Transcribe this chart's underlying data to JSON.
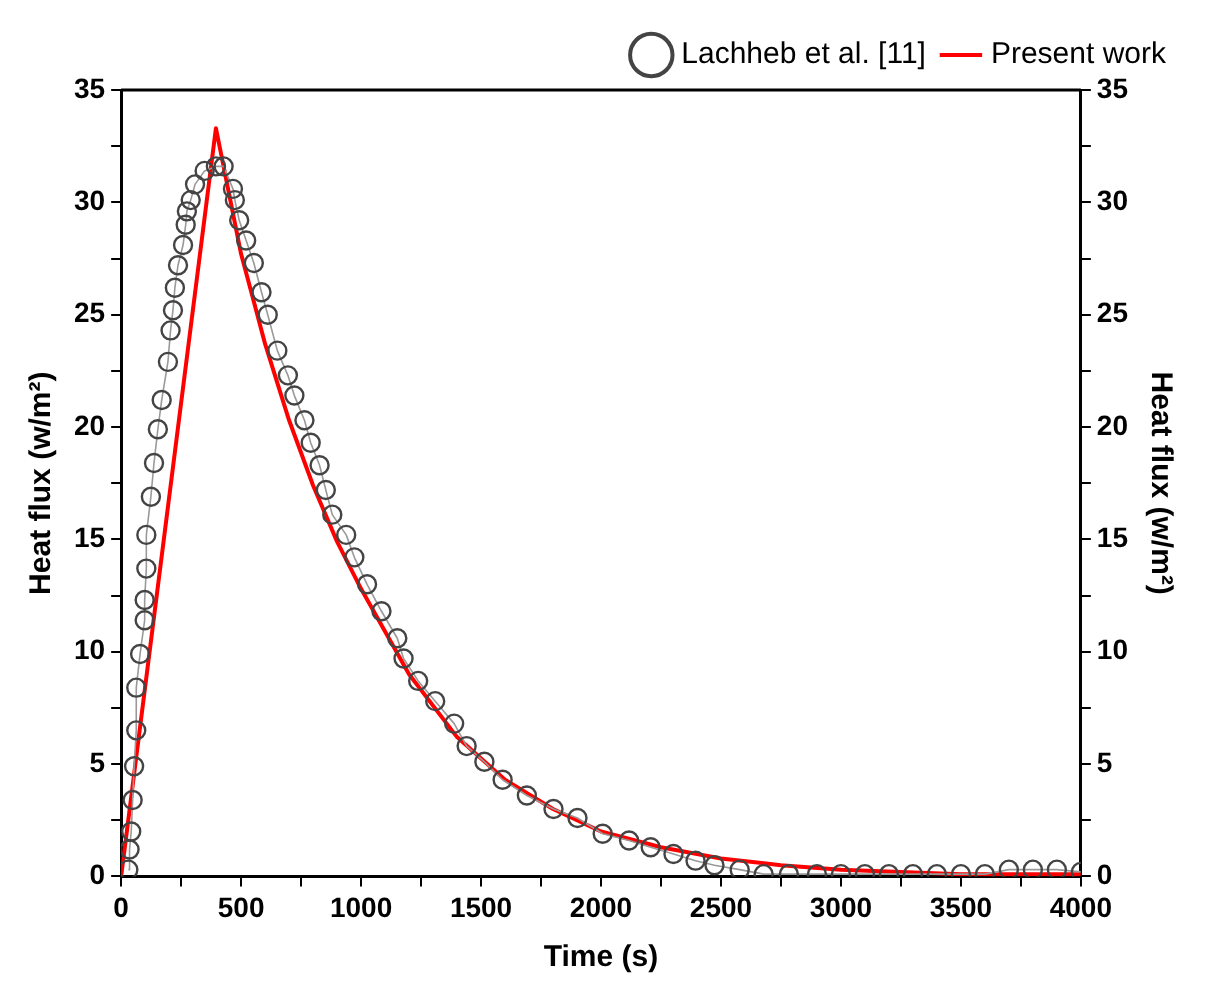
{
  "chart_data": {
    "type": "line",
    "xlabel": "Time (s)",
    "ylabel": "Heat flux (w/m²)",
    "y2label": "Heat flux (w/m²)",
    "xlim": [
      0,
      4000
    ],
    "xticks": [
      0,
      {
        "value": 250,
        "label": null
      },
      500,
      {
        "value": 750,
        "label": null
      },
      1000,
      {
        "value": 1250,
        "label": null
      },
      1500,
      {
        "value": 1750,
        "label": null
      },
      2000,
      {
        "value": 2250,
        "label": null
      },
      2500,
      {
        "value": 2750,
        "label": null
      },
      3000,
      {
        "value": 3250,
        "label": null
      },
      3500,
      {
        "value": 3750,
        "label": null
      },
      4000
    ],
    "ylim": [
      0,
      35
    ],
    "yticks": [
      0,
      {
        "value": 2.5,
        "label": null
      },
      5,
      {
        "value": 7.5,
        "label": null
      },
      10,
      {
        "value": 12.5,
        "label": null
      },
      15,
      {
        "value": 17.5,
        "label": null
      },
      20,
      {
        "value": 22.5,
        "label": null
      },
      25,
      {
        "value": 27.5,
        "label": null
      },
      30,
      {
        "value": 32.5,
        "label": null
      },
      35
    ],
    "y2lim": [
      0,
      35
    ],
    "y2ticks": [
      0,
      {
        "value": 2.5,
        "label": null
      },
      5,
      {
        "value": 7.5,
        "label": null
      },
      10,
      {
        "value": 12.5,
        "label": null
      },
      15,
      {
        "value": 17.5,
        "label": null
      },
      20,
      {
        "value": 22.5,
        "label": null
      },
      25,
      {
        "value": 27.5,
        "label": null
      },
      30,
      {
        "value": 32.5,
        "label": null
      },
      35
    ],
    "grid": false,
    "legend": "top right",
    "series": [
      {
        "name": "Lachheb et al. [11]",
        "color": "#444444",
        "marker": "circle",
        "x": [
          30,
          35,
          42,
          48,
          54,
          63,
          63,
          79,
          98,
          98,
          105,
          105,
          124,
          137,
          153,
          169,
          195,
          206,
          216,
          224,
          237,
          258,
          269,
          274,
          290,
          308,
          348,
          395,
          427,
          466,
          474,
          492,
          521,
          553,
          585,
          611,
          651,
          695,
          722,
          764,
          790,
          827,
          853,
          880,
          938,
          972,
          1025,
          1085,
          1151,
          1177,
          1238,
          1309,
          1388,
          1440,
          1514,
          1590,
          1691,
          1802,
          1902,
          2007,
          2117,
          2207,
          2302,
          2394,
          2473,
          2578,
          2678,
          2783,
          2900,
          3000,
          3100,
          3200,
          3300,
          3400,
          3500,
          3600,
          3700,
          3800,
          3900,
          4000
        ],
        "values": [
          0.3,
          1.2,
          2.0,
          3.4,
          4.9,
          6.5,
          8.4,
          9.9,
          11.4,
          12.3,
          13.7,
          15.2,
          16.9,
          18.4,
          19.9,
          21.2,
          22.9,
          24.3,
          25.2,
          26.2,
          27.2,
          28.1,
          29.0,
          29.6,
          30.1,
          30.8,
          31.4,
          31.6,
          31.6,
          30.6,
          30.1,
          29.2,
          28.3,
          27.3,
          26.0,
          25.0,
          23.4,
          22.3,
          21.4,
          20.3,
          19.3,
          18.3,
          17.2,
          16.1,
          15.2,
          14.2,
          13.0,
          11.8,
          10.6,
          9.7,
          8.7,
          7.8,
          6.8,
          5.8,
          5.1,
          4.3,
          3.6,
          3.0,
          2.6,
          1.9,
          1.6,
          1.3,
          1.0,
          0.7,
          0.5,
          0.3,
          0.1,
          0.1,
          0.1,
          0.1,
          0.1,
          0.1,
          0.1,
          0.1,
          0.1,
          0.1,
          0.3,
          0.3,
          0.3,
          0.2
        ]
      },
      {
        "name": "Present work",
        "color": "#ff0000",
        "marker": "none",
        "x": [
          0,
          395,
          500,
          600,
          700,
          800,
          900,
          1000,
          1200,
          1400,
          1600,
          1800,
          2000,
          2250,
          2500,
          2750,
          3000,
          3500,
          4000
        ],
        "values": [
          0,
          33.3,
          27.7,
          23.7,
          20.3,
          17.4,
          14.9,
          12.8,
          9.0,
          6.2,
          4.3,
          3.0,
          2.0,
          1.3,
          0.8,
          0.5,
          0.3,
          0.1,
          0.1
        ]
      }
    ]
  }
}
